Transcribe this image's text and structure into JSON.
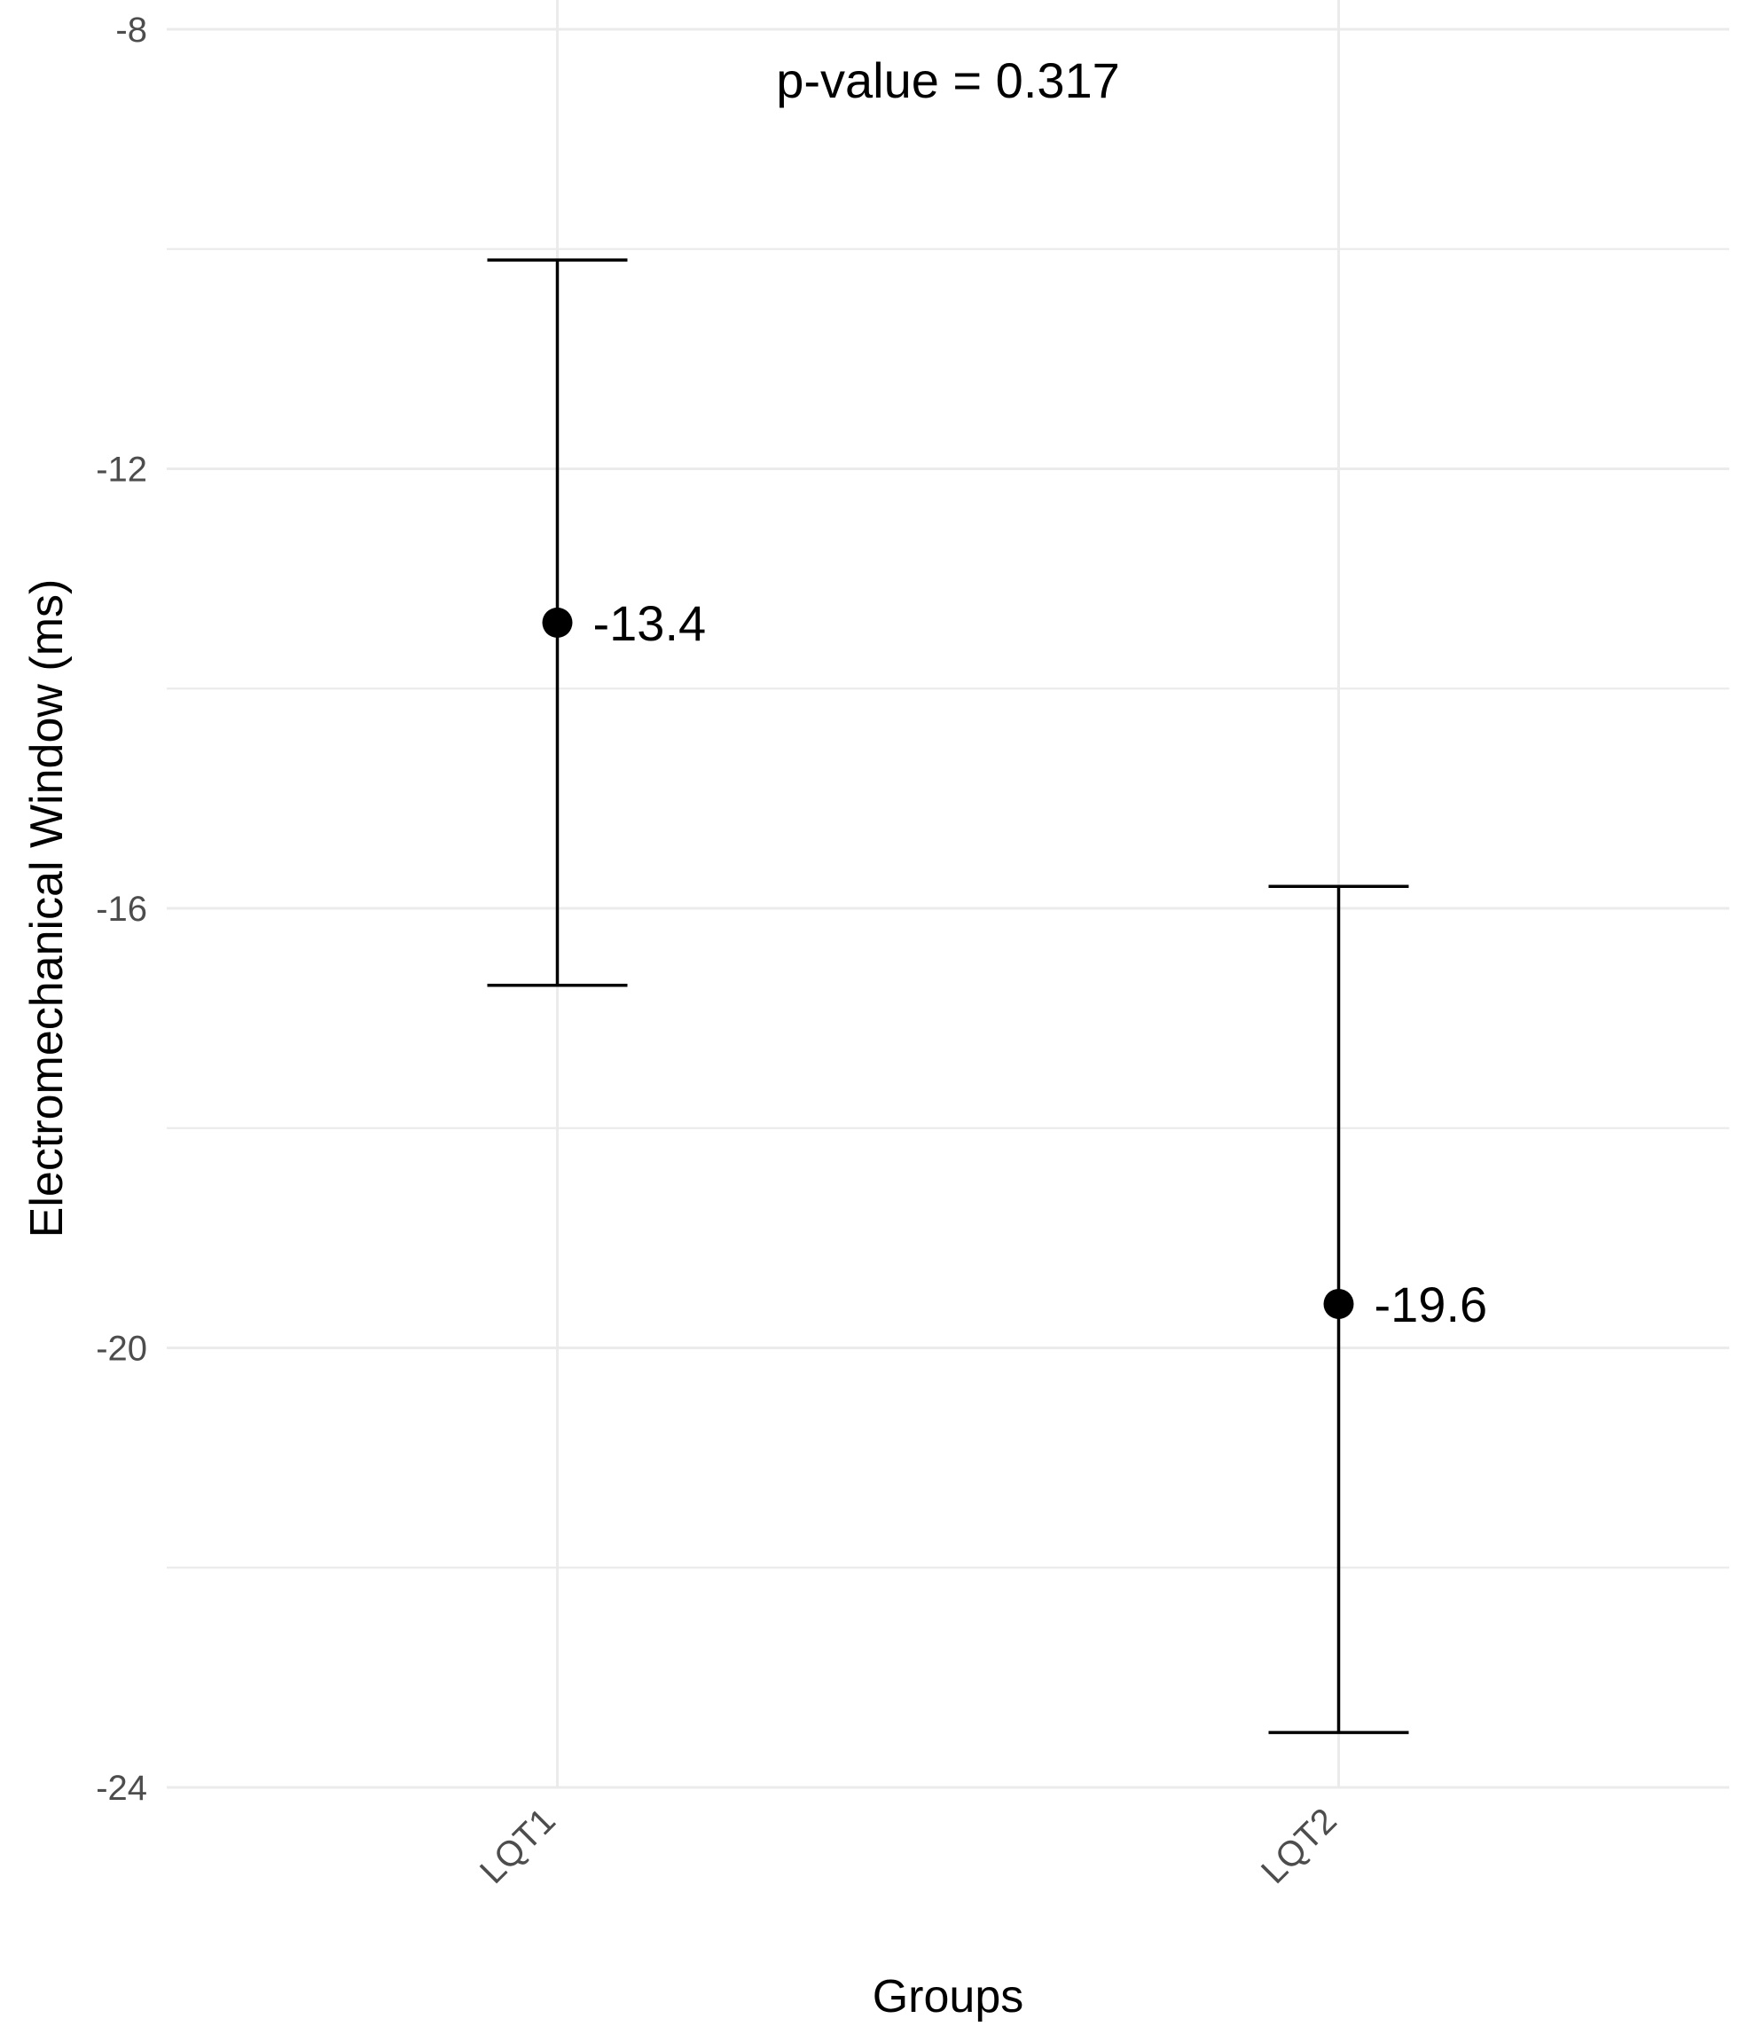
{
  "chart_data": {
    "type": "scatter",
    "categories": [
      "LQT1",
      "LQT2"
    ],
    "points": [
      {
        "category": "LQT1",
        "value": -13.4,
        "lower": -16.7,
        "upper": -10.1,
        "label": "-13.4"
      },
      {
        "category": "LQT2",
        "value": -19.6,
        "lower": -23.5,
        "upper": -15.8,
        "label": "-19.6"
      }
    ],
    "xlabel": "Groups",
    "ylabel": "Electromechanical Window (ms)",
    "ylim": [
      -24,
      -8
    ],
    "yticks": [
      -8,
      -12,
      -16,
      -20,
      -24
    ],
    "annotation": "p-value = 0.317",
    "grid": true,
    "colors": {
      "points": "#000000",
      "grid": "#ebebeb",
      "tick_text": "#4d4d4d"
    }
  }
}
